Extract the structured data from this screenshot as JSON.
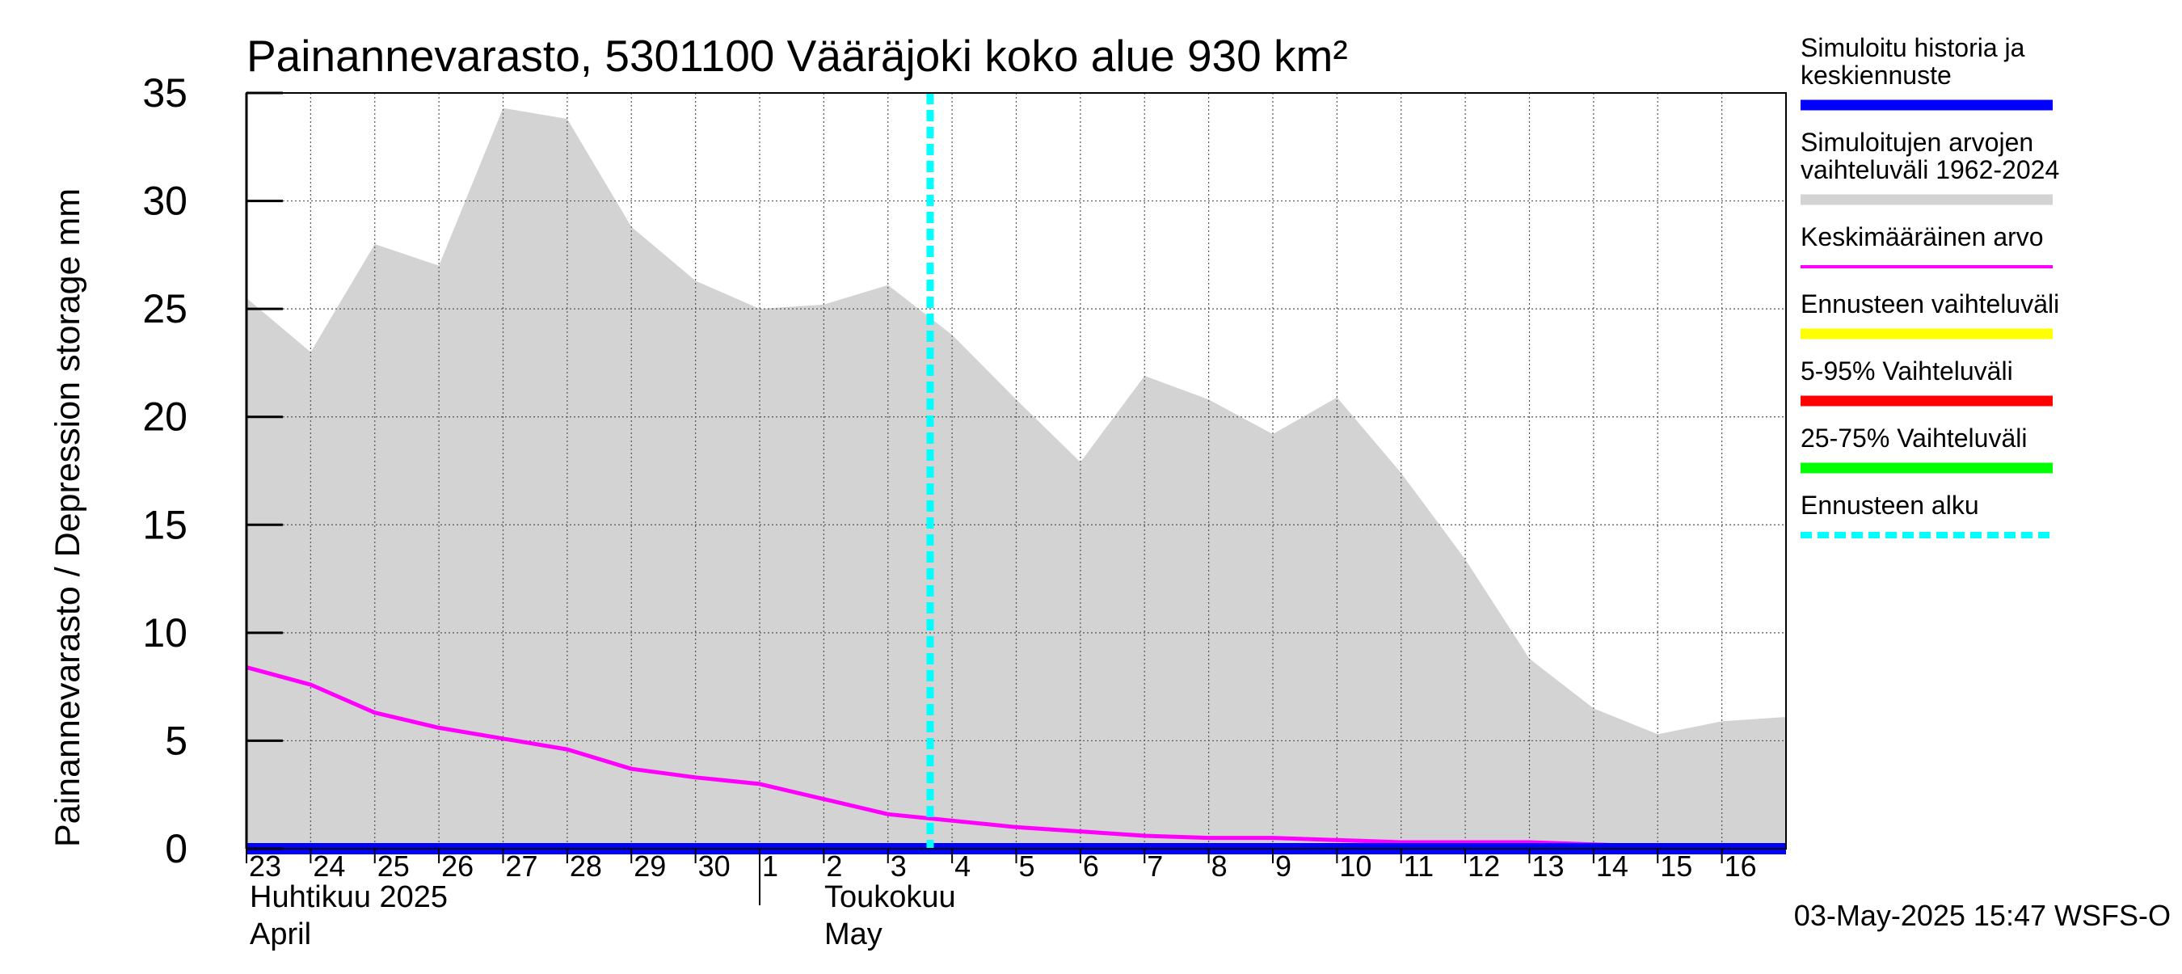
{
  "chart_data": {
    "type": "area",
    "title": "Painannevarasto, 5301100 Vääräjoki koko alue 930 km²",
    "ylabel": "Painannevarasto / Depression storage    mm",
    "ylim": [
      0,
      35
    ],
    "yticks": [
      0,
      5,
      10,
      15,
      20,
      25,
      30,
      35
    ],
    "ytick_labels": [
      "0",
      "5",
      "10",
      "15",
      "20",
      "25",
      "30",
      "35"
    ],
    "xlim": [
      "2025-04-23",
      "2025-05-17"
    ],
    "x_tick_labels": [
      "23",
      "24",
      "25",
      "26",
      "27",
      "28",
      "29",
      "30",
      "1",
      "2",
      "3",
      "4",
      "5",
      "6",
      "7",
      "8",
      "9",
      "10",
      "11",
      "12",
      "13",
      "14",
      "15",
      "16"
    ],
    "month_labels": [
      {
        "fi": "Huhtikuu  2025",
        "en": "April",
        "start": "2025-04-23"
      },
      {
        "fi": "Toukokuu",
        "en": "May",
        "start": "2025-05-01"
      }
    ],
    "grid": true,
    "legend_position": "right",
    "x": [
      "2025-04-23",
      "2025-04-24",
      "2025-04-25",
      "2025-04-26",
      "2025-04-27",
      "2025-04-28",
      "2025-04-29",
      "2025-04-30",
      "2025-05-01",
      "2025-05-02",
      "2025-05-03",
      "2025-05-04",
      "2025-05-05",
      "2025-05-06",
      "2025-05-07",
      "2025-05-08",
      "2025-05-09",
      "2025-05-10",
      "2025-05-11",
      "2025-05-12",
      "2025-05-13",
      "2025-05-14",
      "2025-05-15",
      "2025-05-16",
      "2025-05-17"
    ],
    "series": [
      {
        "name": "Simuloitujen arvojen vaihteluväli 1962-2024",
        "kind": "band",
        "color": "#d3d3d3",
        "upper": [
          25.5,
          23.0,
          28.0,
          27.0,
          34.3,
          33.8,
          28.8,
          26.3,
          25.0,
          25.2,
          26.1,
          23.8,
          20.8,
          17.9,
          21.9,
          20.8,
          19.2,
          20.9,
          17.4,
          13.4,
          8.8,
          6.5,
          5.3,
          5.9,
          6.1
        ],
        "lower": [
          0,
          0,
          0,
          0,
          0,
          0,
          0,
          0,
          0,
          0,
          0,
          0,
          0,
          0,
          0,
          0,
          0,
          0,
          0,
          0,
          0,
          0,
          0,
          0,
          0
        ]
      },
      {
        "name": "Keskimääräinen arvo",
        "kind": "line",
        "color": "#ff00ff",
        "values": [
          8.4,
          7.6,
          6.3,
          5.6,
          5.1,
          4.6,
          3.7,
          3.3,
          3.0,
          2.3,
          1.6,
          1.3,
          1.0,
          0.8,
          0.6,
          0.5,
          0.5,
          0.4,
          0.3,
          0.3,
          0.3,
          0.2,
          0.1,
          0.0,
          -0.1
        ]
      },
      {
        "name": "Simuloitu historia ja keskiennuste",
        "kind": "line",
        "color": "#0000ff",
        "values": [
          0,
          0,
          0,
          0,
          0,
          0,
          0,
          0,
          0,
          0,
          0,
          0,
          0,
          0,
          0,
          0,
          0,
          0,
          0,
          0,
          0,
          0,
          0,
          0,
          0
        ]
      }
    ],
    "forecast_start": "2025-05-03T15:47",
    "legend": [
      {
        "label": "Simuloitu historia ja keskiennuste",
        "color": "#0000ff",
        "style": "thick"
      },
      {
        "label": "Simuloitujen arvojen vaihteluväli 1962-2024",
        "color": "#d3d3d3",
        "style": "thick"
      },
      {
        "label": "Keskimääräinen arvo",
        "color": "#ff00ff",
        "style": "thin"
      },
      {
        "label": "Ennusteen vaihteluväli",
        "color": "#ffff00",
        "style": "thick"
      },
      {
        "label": "5-95% Vaihteluväli",
        "color": "#ff0000",
        "style": "thick"
      },
      {
        "label": "25-75% Vaihteluväli",
        "color": "#00ff00",
        "style": "thick"
      },
      {
        "label": "Ennusteen alku",
        "color": "#00ffff",
        "style": "dashed"
      }
    ],
    "footer": "03-May-2025 15:47 WSFS-O"
  }
}
